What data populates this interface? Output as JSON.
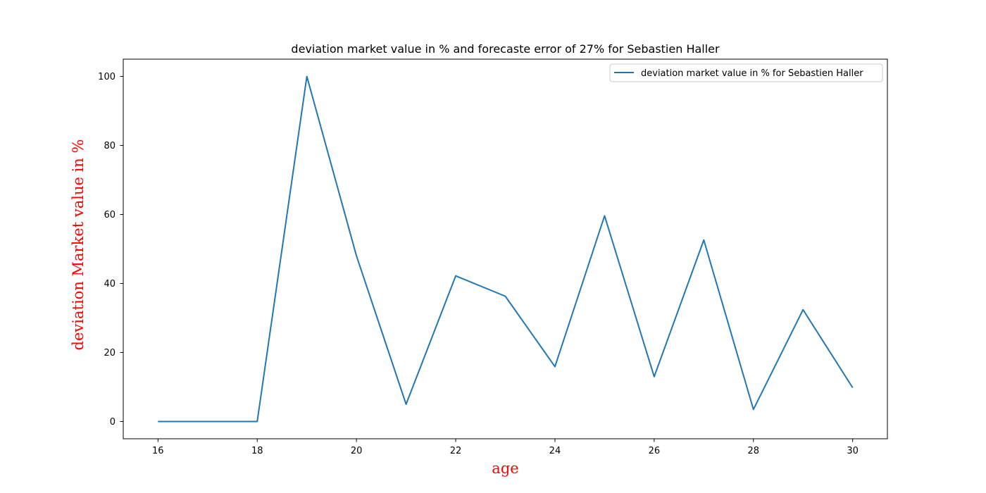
{
  "chart_data": {
    "type": "line",
    "title": "deviation market value in % and forecaste error of 27% for Sebastien Haller",
    "xlabel": "age",
    "ylabel": "deviation Market value in %",
    "axis_label_color": "#ff0000",
    "xlim": [
      15.3,
      30.7
    ],
    "ylim": [
      -5,
      105
    ],
    "x_ticks": [
      16,
      18,
      20,
      22,
      24,
      26,
      28,
      30
    ],
    "y_ticks": [
      0,
      20,
      40,
      60,
      80,
      100
    ],
    "x_tick_labels": [
      "16",
      "18",
      "20",
      "22",
      "24",
      "26",
      "28",
      "30"
    ],
    "y_tick_labels": [
      "0",
      "20",
      "40",
      "60",
      "80",
      "100"
    ],
    "grid": false,
    "legend_position": "top-right",
    "series": [
      {
        "name": "deviation market value in % for Sebastien Haller",
        "color": "#1f77b4",
        "x": [
          16,
          17,
          18,
          19,
          20,
          21,
          22,
          23,
          24,
          25,
          26,
          27,
          28,
          29,
          30
        ],
        "y": [
          0,
          0,
          0,
          100,
          48,
          5,
          42.2,
          36.3,
          15.9,
          59.6,
          13,
          52.6,
          3.5,
          32.4,
          9.8
        ]
      }
    ]
  }
}
